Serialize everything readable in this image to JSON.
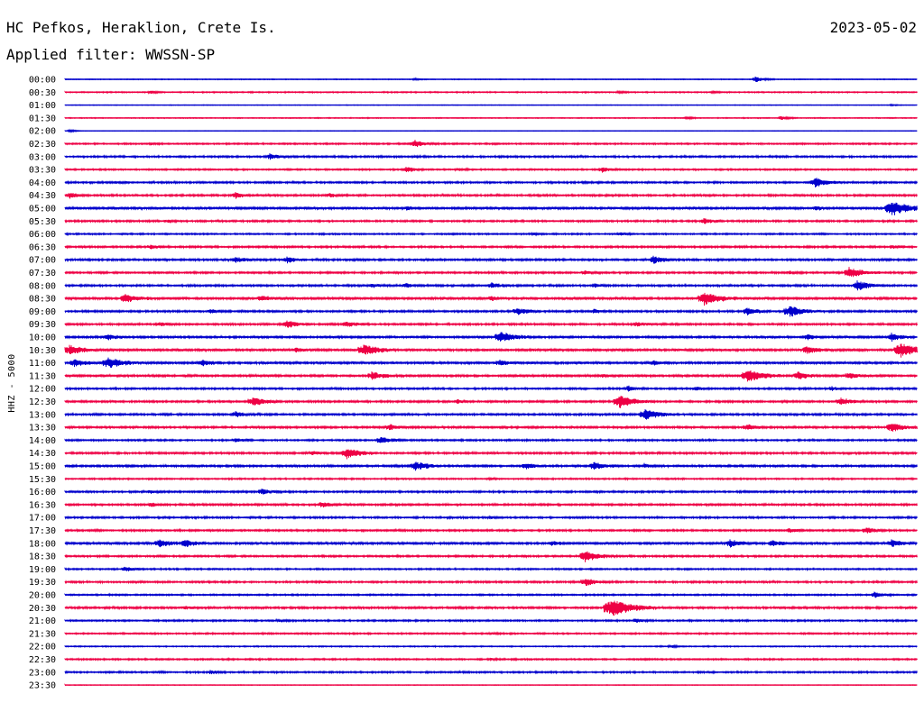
{
  "header": {
    "station": "HC Pefkos, Heraklion, Crete Is.",
    "date": "2023-05-02",
    "filter": "Applied filter: WWSSN-SP"
  },
  "chart_data": {
    "type": "line",
    "title": "HC Pefkos, Heraklion, Crete Is.",
    "ylabel": "HHZ - 5000",
    "grid": false,
    "colors": {
      "blue": "#0000cc",
      "red": "#ee0044"
    },
    "rows": [
      {
        "label": "00:00",
        "color": "blue",
        "base": 0.5,
        "events": [
          [
            0.81,
            3
          ],
          [
            0.41,
            1
          ]
        ]
      },
      {
        "label": "00:30",
        "color": "red",
        "base": 0.8,
        "events": [
          [
            0.1,
            1.5
          ],
          [
            0.65,
            1.2
          ],
          [
            0.76,
            1
          ]
        ]
      },
      {
        "label": "01:00",
        "color": "blue",
        "base": 0.4,
        "events": [
          [
            0.97,
            0.8
          ]
        ]
      },
      {
        "label": "01:30",
        "color": "red",
        "base": 0.6,
        "events": [
          [
            0.73,
            1.4
          ],
          [
            0.84,
            2
          ]
        ]
      },
      {
        "label": "02:00",
        "color": "blue",
        "base": 0.3,
        "events": [
          [
            0.005,
            1.5
          ]
        ]
      },
      {
        "label": "02:30",
        "color": "red",
        "base": 1,
        "events": [
          [
            0.41,
            4
          ],
          [
            0.1,
            1
          ]
        ]
      },
      {
        "label": "03:00",
        "color": "blue",
        "base": 1.2,
        "events": [
          [
            0.24,
            3
          ]
        ]
      },
      {
        "label": "03:30",
        "color": "red",
        "base": 1,
        "events": [
          [
            0.4,
            3
          ],
          [
            0.63,
            3
          ],
          [
            0.46,
            1.5
          ]
        ]
      },
      {
        "label": "04:00",
        "color": "blue",
        "base": 1.2,
        "events": [
          [
            0.88,
            5
          ],
          [
            0.06,
            1.2
          ]
        ]
      },
      {
        "label": "04:30",
        "color": "red",
        "base": 1.3,
        "events": [
          [
            0.005,
            3
          ],
          [
            0.2,
            3
          ],
          [
            0.31,
            2
          ]
        ]
      },
      {
        "label": "05:00",
        "color": "blue",
        "base": 1.6,
        "events": [
          [
            0.97,
            8
          ],
          [
            0.88,
            2
          ],
          [
            0.4,
            1.5
          ]
        ]
      },
      {
        "label": "05:30",
        "color": "red",
        "base": 1.2,
        "events": [
          [
            0.75,
            3
          ],
          [
            0.12,
            1.5
          ]
        ]
      },
      {
        "label": "06:00",
        "color": "blue",
        "base": 1,
        "events": [
          [
            0.55,
            1.2
          ],
          [
            0.65,
            1.5
          ]
        ]
      },
      {
        "label": "06:30",
        "color": "red",
        "base": 1.3,
        "events": [
          [
            0.1,
            2
          ],
          [
            0.97,
            1.5
          ]
        ]
      },
      {
        "label": "07:00",
        "color": "blue",
        "base": 1.4,
        "events": [
          [
            0.2,
            3
          ],
          [
            0.26,
            3
          ],
          [
            0.69,
            4
          ]
        ]
      },
      {
        "label": "07:30",
        "color": "red",
        "base": 1.2,
        "events": [
          [
            0.92,
            6
          ],
          [
            0.61,
            2
          ],
          [
            0.85,
            1.5
          ]
        ]
      },
      {
        "label": "08:00",
        "color": "blue",
        "base": 1.3,
        "events": [
          [
            0.36,
            2
          ],
          [
            0.4,
            2.5
          ],
          [
            0.5,
            3
          ],
          [
            0.93,
            5
          ],
          [
            0.62,
            2
          ]
        ]
      },
      {
        "label": "08:30",
        "color": "red",
        "base": 1.6,
        "events": [
          [
            0.07,
            5
          ],
          [
            0.23,
            3
          ],
          [
            0.75,
            7
          ],
          [
            0.5,
            2
          ]
        ]
      },
      {
        "label": "09:00",
        "color": "blue",
        "base": 1.3,
        "events": [
          [
            0.53,
            4
          ],
          [
            0.8,
            4
          ],
          [
            0.85,
            6
          ],
          [
            0.62,
            2
          ],
          [
            0.17,
            2
          ]
        ]
      },
      {
        "label": "09:30",
        "color": "red",
        "base": 1.3,
        "events": [
          [
            0.26,
            4
          ],
          [
            0.33,
            3
          ],
          [
            0.67,
            2
          ],
          [
            0.11,
            2
          ]
        ]
      },
      {
        "label": "10:00",
        "color": "blue",
        "base": 1.5,
        "events": [
          [
            0.05,
            3
          ],
          [
            0.51,
            6
          ],
          [
            0.87,
            3
          ],
          [
            0.97,
            4
          ]
        ]
      },
      {
        "label": "10:30",
        "color": "red",
        "base": 1.6,
        "events": [
          [
            0.005,
            5
          ],
          [
            0.35,
            6
          ],
          [
            0.98,
            8
          ],
          [
            0.87,
            4
          ],
          [
            0.27,
            2
          ]
        ]
      },
      {
        "label": "11:00",
        "color": "blue",
        "base": 1.6,
        "events": [
          [
            0.01,
            4
          ],
          [
            0.05,
            6
          ],
          [
            0.16,
            3
          ],
          [
            0.51,
            3
          ],
          [
            0.69,
            2
          ]
        ]
      },
      {
        "label": "11:30",
        "color": "red",
        "base": 1.5,
        "events": [
          [
            0.36,
            4
          ],
          [
            0.8,
            7
          ],
          [
            0.86,
            4
          ],
          [
            0.92,
            3
          ],
          [
            0.63,
            2
          ]
        ]
      },
      {
        "label": "12:00",
        "color": "blue",
        "base": 1.2,
        "events": [
          [
            0.66,
            3
          ],
          [
            0.74,
            2
          ],
          [
            0.9,
            2
          ]
        ]
      },
      {
        "label": "12:30",
        "color": "red",
        "base": 1.3,
        "events": [
          [
            0.22,
            5
          ],
          [
            0.65,
            7
          ],
          [
            0.91,
            4
          ],
          [
            0.46,
            2
          ]
        ]
      },
      {
        "label": "13:00",
        "color": "blue",
        "base": 1.3,
        "events": [
          [
            0.2,
            3
          ],
          [
            0.68,
            6
          ]
        ]
      },
      {
        "label": "13:30",
        "color": "red",
        "base": 1.4,
        "events": [
          [
            0.38,
            3
          ],
          [
            0.8,
            3
          ],
          [
            0.97,
            5
          ]
        ]
      },
      {
        "label": "14:00",
        "color": "blue",
        "base": 1.1,
        "events": [
          [
            0.37,
            4
          ],
          [
            0.2,
            2
          ]
        ]
      },
      {
        "label": "14:30",
        "color": "red",
        "base": 1.3,
        "events": [
          [
            0.33,
            6
          ],
          [
            0.29,
            2
          ]
        ]
      },
      {
        "label": "15:00",
        "color": "blue",
        "base": 1.4,
        "events": [
          [
            0.41,
            5
          ],
          [
            0.54,
            3
          ],
          [
            0.62,
            4
          ],
          [
            0.68,
            2
          ]
        ]
      },
      {
        "label": "15:30",
        "color": "red",
        "base": 1,
        "events": [
          [
            0.5,
            1
          ]
        ]
      },
      {
        "label": "16:00",
        "color": "blue",
        "base": 1.2,
        "events": [
          [
            0.23,
            3
          ],
          [
            0.1,
            1.5
          ]
        ]
      },
      {
        "label": "16:30",
        "color": "red",
        "base": 1.3,
        "events": [
          [
            0.3,
            3
          ],
          [
            0.1,
            2
          ]
        ]
      },
      {
        "label": "17:00",
        "color": "blue",
        "base": 1.2,
        "events": [
          [
            0.5,
            1
          ]
        ]
      },
      {
        "label": "17:30",
        "color": "red",
        "base": 1.2,
        "events": [
          [
            0.85,
            2
          ],
          [
            0.94,
            3
          ]
        ]
      },
      {
        "label": "18:00",
        "color": "blue",
        "base": 1.6,
        "events": [
          [
            0.11,
            4
          ],
          [
            0.14,
            4
          ],
          [
            0.57,
            2
          ],
          [
            0.78,
            4
          ],
          [
            0.83,
            3
          ],
          [
            0.97,
            4
          ]
        ]
      },
      {
        "label": "18:30",
        "color": "red",
        "base": 1.2,
        "events": [
          [
            0.61,
            6
          ],
          [
            0.9,
            1.5
          ]
        ]
      },
      {
        "label": "19:00",
        "color": "blue",
        "base": 1,
        "events": [
          [
            0.07,
            3
          ]
        ]
      },
      {
        "label": "19:30",
        "color": "red",
        "base": 1.2,
        "events": [
          [
            0.61,
            4
          ],
          [
            0.3,
            1.5
          ]
        ]
      },
      {
        "label": "20:00",
        "color": "blue",
        "base": 1,
        "events": [
          [
            0.95,
            3
          ]
        ]
      },
      {
        "label": "20:30",
        "color": "red",
        "base": 1.4,
        "events": [
          [
            0.64,
            10
          ],
          [
            0.14,
            1.5
          ]
        ]
      },
      {
        "label": "21:00",
        "color": "blue",
        "base": 1.1,
        "events": [
          [
            0.67,
            2
          ],
          [
            0.25,
            1.5
          ]
        ]
      },
      {
        "label": "21:30",
        "color": "red",
        "base": 1,
        "events": [
          [
            0.5,
            1
          ]
        ]
      },
      {
        "label": "22:00",
        "color": "blue",
        "base": 0.8,
        "events": [
          [
            0.71,
            1.5
          ]
        ]
      },
      {
        "label": "22:30",
        "color": "red",
        "base": 1,
        "events": [
          [
            0.5,
            1
          ]
        ]
      },
      {
        "label": "23:00",
        "color": "blue",
        "base": 1.1,
        "events": [
          [
            0.17,
            2
          ]
        ]
      },
      {
        "label": "23:30",
        "color": "red",
        "base": 0.4,
        "events": []
      }
    ]
  }
}
